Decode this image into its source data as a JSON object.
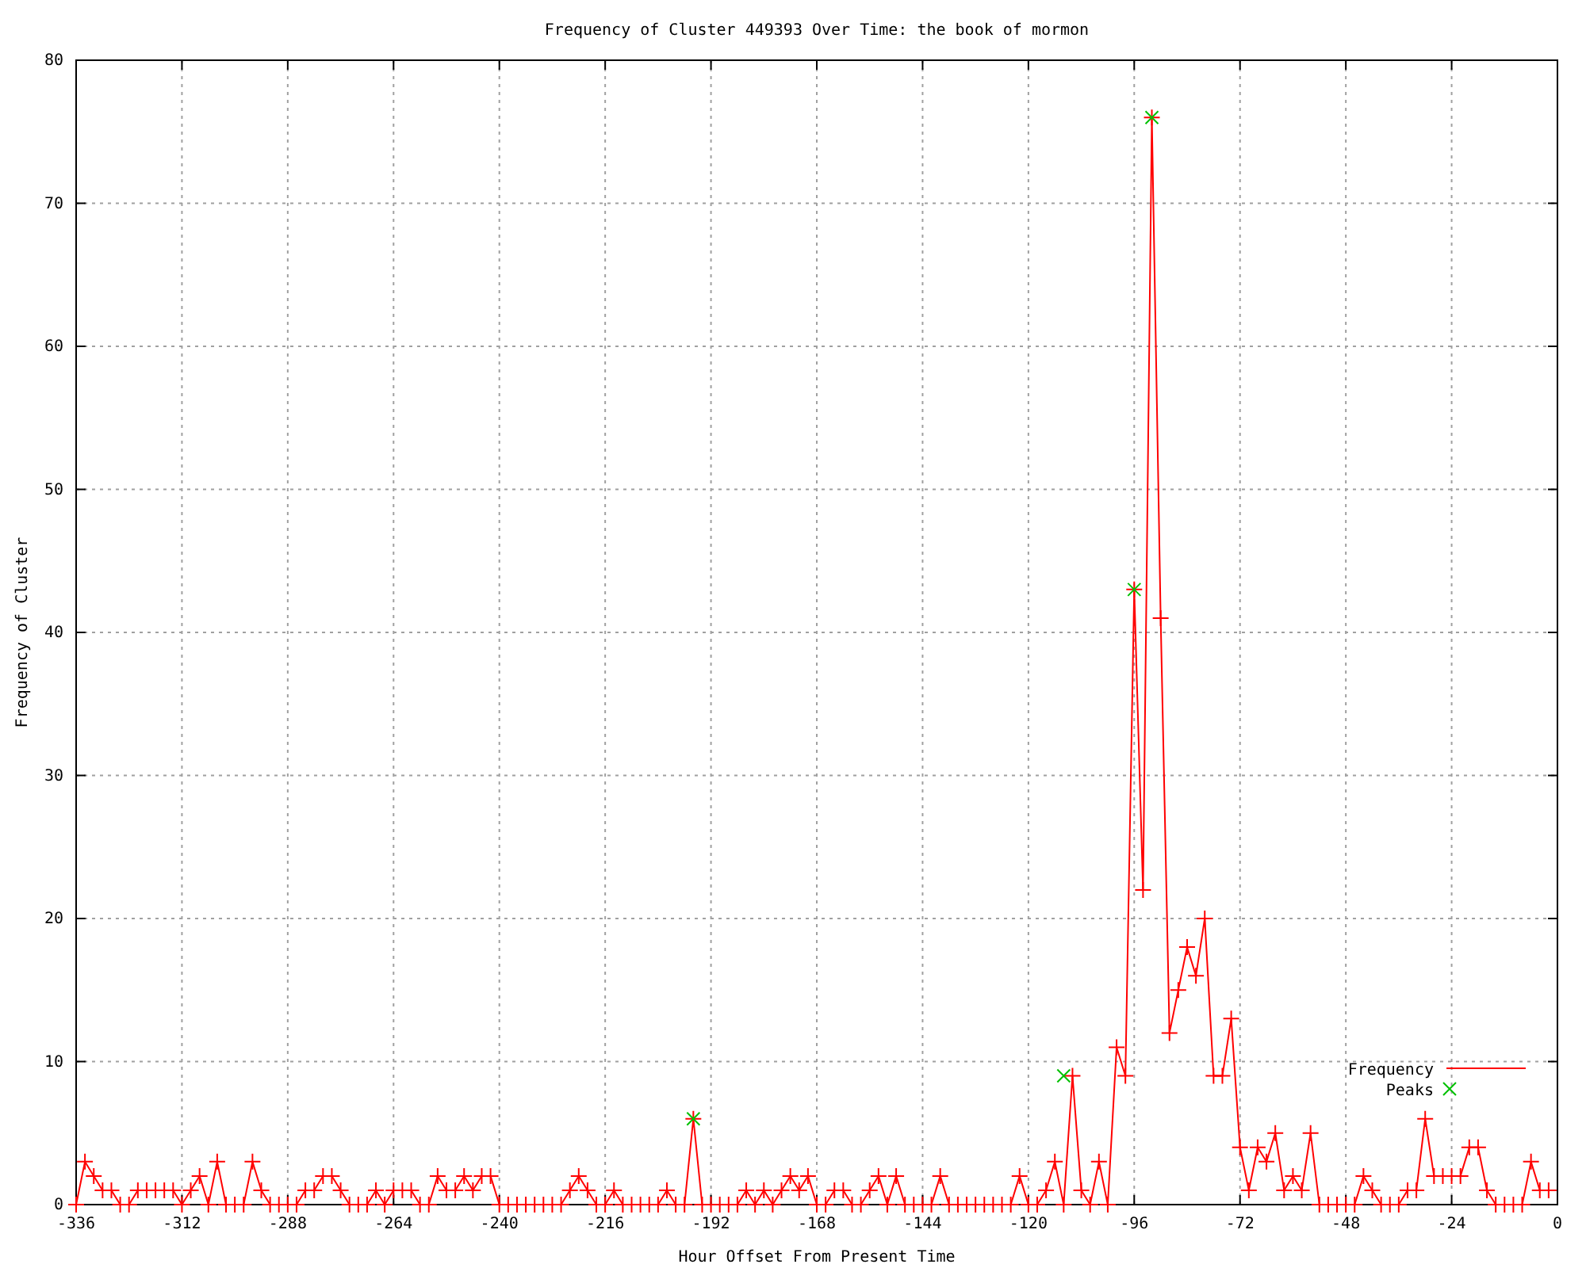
{
  "chart_data": {
    "type": "line",
    "title": "Frequency of Cluster 449393 Over Time: the book of mormon",
    "xlabel": "Hour Offset From Present Time",
    "ylabel": "Frequency of Cluster",
    "xlim": [
      -336,
      0
    ],
    "xticks": [
      -336,
      -312,
      -288,
      -264,
      -240,
      -216,
      -192,
      -168,
      -144,
      -120,
      -96,
      -72,
      -48,
      -24,
      0
    ],
    "ylim": [
      0,
      80
    ],
    "yticks": [
      0,
      10,
      20,
      30,
      40,
      50,
      60,
      70,
      80
    ],
    "grid": true,
    "legend": "bottom right",
    "marker": "cross",
    "line_style": "solid",
    "series": [
      {
        "name": "Frequency",
        "color": "#ff0000",
        "x": [
          -336,
          -334,
          -332,
          -330,
          -328,
          -326,
          -324,
          -322,
          -320,
          -318,
          -316,
          -314,
          -312,
          -310,
          -308,
          -306,
          -304,
          -302,
          -300,
          -298,
          -296,
          -294,
          -292,
          -290,
          -288,
          -286,
          -284,
          -282,
          -280,
          -278,
          -276,
          -274,
          -272,
          -270,
          -268,
          -266,
          -264,
          -262,
          -260,
          -258,
          -256,
          -254,
          -252,
          -250,
          -248,
          -246,
          -244,
          -242,
          -240,
          -238,
          -236,
          -234,
          -232,
          -230,
          -228,
          -226,
          -224,
          -222,
          -220,
          -218,
          -216,
          -214,
          -212,
          -210,
          -208,
          -206,
          -204,
          -202,
          -200,
          -198,
          -196,
          -194,
          -192,
          -190,
          -188,
          -186,
          -184,
          -182,
          -180,
          -178,
          -176,
          -174,
          -172,
          -170,
          -168,
          -166,
          -164,
          -162,
          -160,
          -158,
          -156,
          -154,
          -152,
          -150,
          -148,
          -146,
          -144,
          -142,
          -140,
          -138,
          -136,
          -134,
          -132,
          -130,
          -128,
          -126,
          -124,
          -122,
          -120,
          -118,
          -116,
          -114,
          -112,
          -110,
          -108,
          -106,
          -104,
          -102,
          -100,
          -98,
          -96,
          -94,
          -92,
          -90,
          -88,
          -86,
          -84,
          -82,
          -80,
          -78,
          -76,
          -74,
          -72,
          -70,
          -68,
          -66,
          -64,
          -62,
          -60,
          -58,
          -56,
          -54,
          -52,
          -50,
          -48,
          -46,
          -44,
          -42,
          -40,
          -38,
          -36,
          -34,
          -32,
          -30,
          -28,
          -26,
          -24,
          -22,
          -20,
          -18,
          -16,
          -14,
          -12,
          -10,
          -8,
          -6,
          -4,
          -2
        ],
        "values": [
          0,
          3,
          2,
          1,
          1,
          0,
          0,
          1,
          1,
          1,
          1,
          1,
          0,
          1,
          2,
          0,
          3,
          0,
          0,
          0,
          3,
          1,
          0,
          0,
          0,
          0,
          1,
          1,
          2,
          2,
          1,
          0,
          0,
          0,
          1,
          0,
          1,
          1,
          1,
          0,
          0,
          2,
          1,
          1,
          2,
          1,
          2,
          2,
          0,
          0,
          0,
          0,
          0,
          0,
          0,
          0,
          1,
          2,
          1,
          0,
          0,
          1,
          0,
          0,
          0,
          0,
          0,
          1,
          0,
          0,
          6,
          0,
          0,
          0,
          0,
          0,
          1,
          0,
          1,
          0,
          1,
          2,
          1,
          2,
          0,
          0,
          1,
          1,
          0,
          0,
          1,
          2,
          0,
          2,
          0,
          0,
          0,
          0,
          2,
          0,
          0,
          0,
          0,
          0,
          0,
          0,
          0,
          2,
          0,
          0,
          1,
          3,
          0,
          9,
          1,
          0,
          3,
          0,
          11,
          9,
          43,
          22,
          76,
          41,
          12,
          15,
          18,
          16,
          20,
          9,
          9,
          13,
          4,
          1,
          4,
          3,
          5,
          1,
          2,
          1,
          5,
          0,
          0,
          0,
          0,
          0,
          2,
          1,
          0,
          0,
          0,
          1,
          1,
          6,
          2,
          2,
          2,
          2,
          4,
          4,
          1,
          0,
          0,
          0,
          0,
          3,
          1,
          1
        ]
      },
      {
        "name": "Peaks",
        "type": "scatter",
        "color": "#00c000",
        "marker": "cross",
        "x": [
          -196,
          -112,
          -96,
          -92
        ],
        "values": [
          6,
          9,
          43,
          76
        ]
      }
    ]
  }
}
